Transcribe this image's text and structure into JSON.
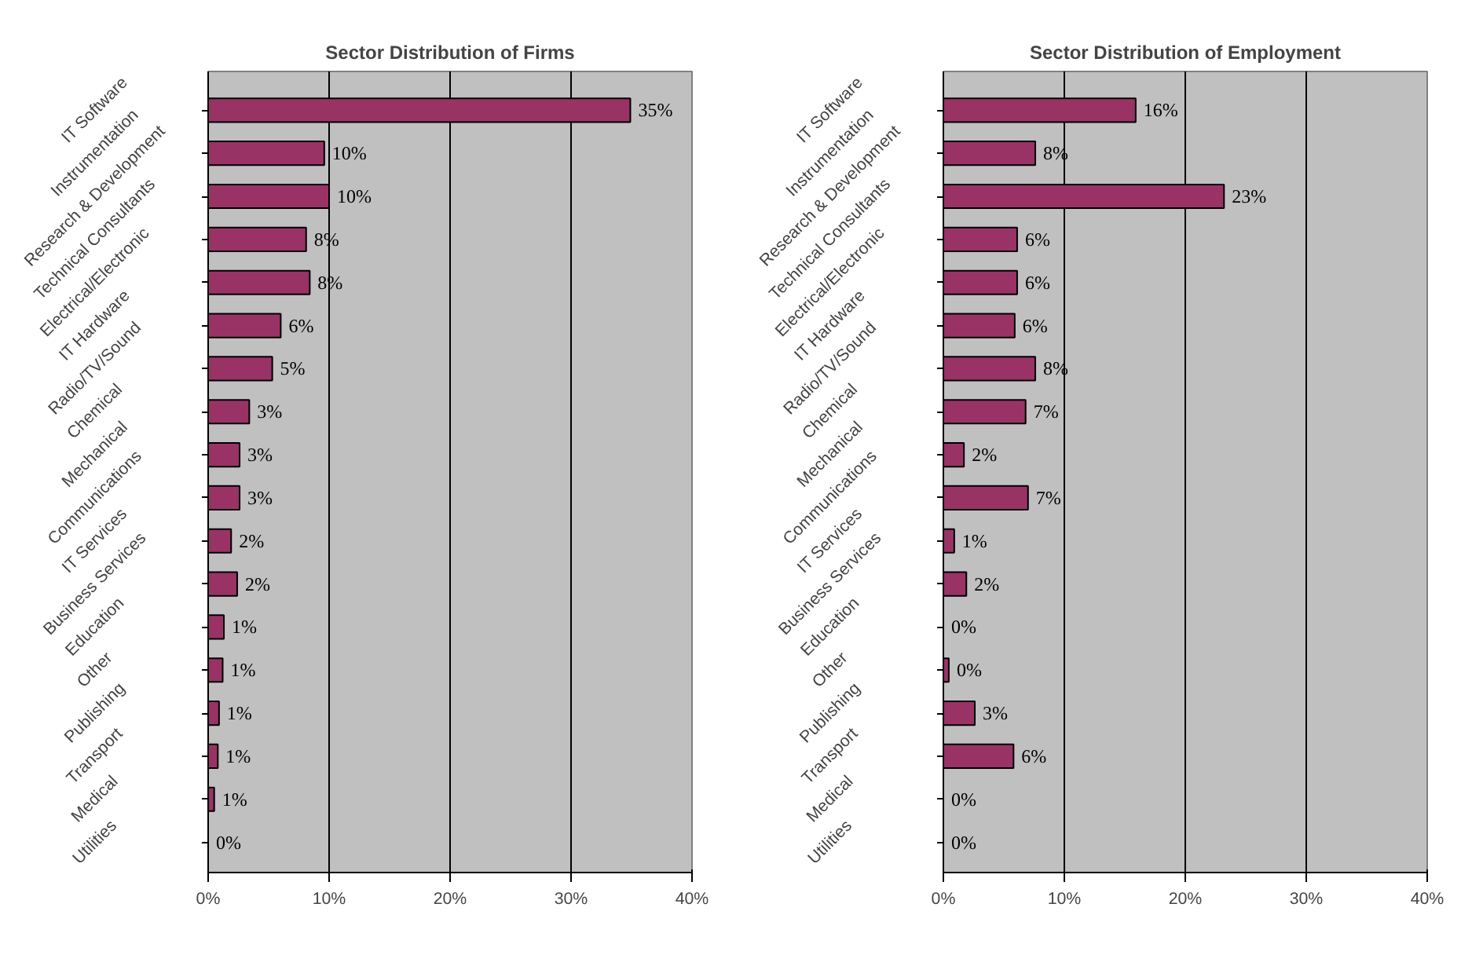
{
  "chart_data": [
    {
      "type": "bar",
      "orientation": "horizontal",
      "title": "Sector Distribution of Firms",
      "categories": [
        "IT Software",
        "Instrumentation",
        "Research & Development",
        "Technical Consultants",
        "Electrical/Electronic",
        "IT Hardware",
        "Radio/TV/Sound",
        "Chemical",
        "Mechanical",
        "Communications",
        "IT Services",
        "Business Services",
        "Education",
        "Other",
        "Publishing",
        "Transport",
        "Medical",
        "Utilities"
      ],
      "values": [
        34.9,
        9.6,
        10.0,
        8.1,
        8.4,
        6.0,
        5.3,
        3.4,
        2.6,
        2.6,
        1.9,
        2.4,
        1.3,
        1.2,
        0.9,
        0.8,
        0.5,
        0
      ],
      "value_labels": [
        "35%",
        "10%",
        "10%",
        "8%",
        "8%",
        "6%",
        "5%",
        "3%",
        "3%",
        "3%",
        "2%",
        "2%",
        "1%",
        "1%",
        "1%",
        "1%",
        "1%",
        "0%"
      ],
      "color": "#993366",
      "xlim": [
        0,
        40
      ],
      "xticks": [
        {
          "value": 0,
          "label": "0%"
        },
        {
          "value": 10,
          "label": "10%"
        },
        {
          "value": 20,
          "label": "20%"
        },
        {
          "value": 30,
          "label": "30%"
        },
        {
          "value": 40,
          "label": "40%"
        }
      ],
      "grid": "x"
    },
    {
      "type": "bar",
      "orientation": "horizontal",
      "title": "Sector Distribution of Employment",
      "categories": [
        "IT Software",
        "Instrumentation",
        "Research & Development",
        "Technical Consultants",
        "Electrical/Electronic",
        "IT Hardware",
        "Radio/TV/Sound",
        "Chemical",
        "Mechanical",
        "Communications",
        "IT Services",
        "Business Services",
        "Education",
        "Other",
        "Publishing",
        "Transport",
        "Medical",
        "Utilities"
      ],
      "values": [
        15.9,
        7.6,
        23.2,
        6.1,
        6.1,
        5.9,
        7.6,
        6.8,
        1.7,
        7.0,
        0.9,
        1.9,
        0,
        0.45,
        2.6,
        5.8,
        0,
        0
      ],
      "value_labels": [
        "16%",
        "8%",
        "23%",
        "6%",
        "6%",
        "6%",
        "8%",
        "7%",
        "2%",
        "7%",
        "1%",
        "2%",
        "0%",
        "0%",
        "3%",
        "6%",
        "0%",
        "0%"
      ],
      "color": "#993366",
      "xlim": [
        0,
        40
      ],
      "xticks": [
        {
          "value": 0,
          "label": "0%"
        },
        {
          "value": 10,
          "label": "10%"
        },
        {
          "value": 20,
          "label": "20%"
        },
        {
          "value": 30,
          "label": "30%"
        },
        {
          "value": 40,
          "label": "40%"
        }
      ],
      "grid": "x"
    }
  ]
}
